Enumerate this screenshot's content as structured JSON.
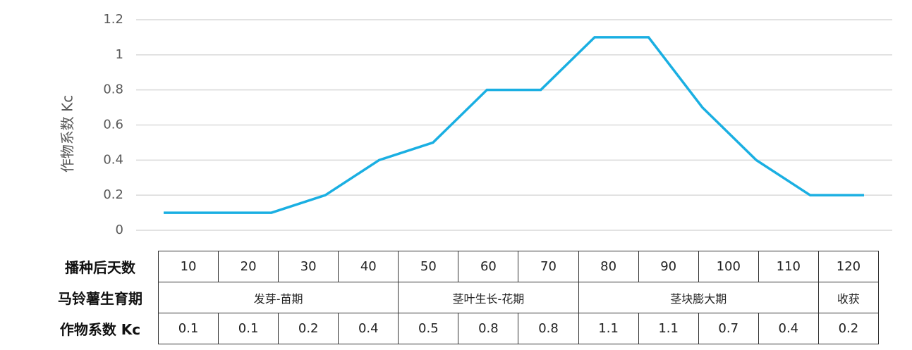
{
  "chart_data": {
    "type": "line",
    "y_label": "作物系数 Kc",
    "categories": [
      null,
      null,
      null,
      null,
      null,
      null,
      null,
      null,
      null,
      null,
      null,
      null,
      null,
      null
    ],
    "series": [
      {
        "name": null,
        "color": "#1aafe2",
        "values": [
          0.1,
          0.1,
          0.1,
          0.2,
          0.4,
          0.5,
          0.8,
          0.8,
          1.1,
          1.1,
          0.7,
          0.4,
          0.2,
          0.2
        ]
      }
    ],
    "ylim": [
      0,
      1.2
    ],
    "yticks": [
      0,
      0.2,
      0.4,
      0.6,
      0.8,
      1,
      1.2
    ],
    "grid": true
  },
  "table": {
    "rows": [
      [
        "播种后天数",
        "10",
        "20",
        "30",
        "40",
        "50",
        "60",
        "70",
        "80",
        "90",
        "100",
        "110",
        "120"
      ],
      [
        "马铃薯生育期",
        "发芽-苗期",
        "茎叶生长-花期",
        "茎块膨大期",
        "收获"
      ],
      [
        "作物系数 Kc",
        "0.1",
        "0.1",
        "0.2",
        "0.4",
        "0.5",
        "0.8",
        "0.8",
        "1.1",
        "1.1",
        "0.7",
        "0.4",
        "0.2"
      ]
    ]
  }
}
